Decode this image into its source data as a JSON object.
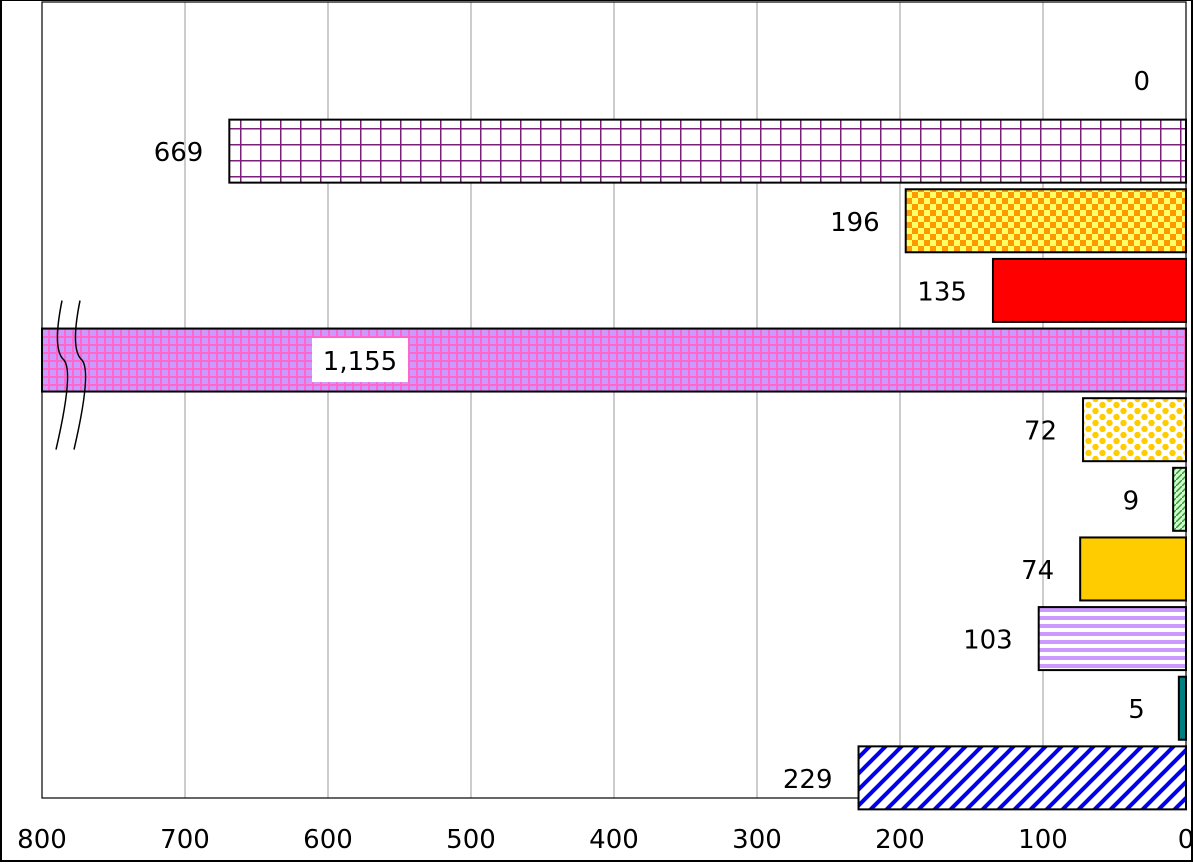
{
  "chart_data": {
    "type": "bar",
    "orientation": "horizontal",
    "x_axis_reversed": true,
    "xlim": [
      800,
      0
    ],
    "xticks": [
      "800",
      "700",
      "600",
      "500",
      "400",
      "300",
      "200",
      "100",
      "0"
    ],
    "grid": true,
    "axis_break": true,
    "values": [
      0,
      669,
      196,
      135,
      1155,
      72,
      9,
      74,
      103,
      5,
      229
    ],
    "value_labels": [
      "0",
      "669",
      "196",
      "135",
      "1,155",
      "72",
      "9",
      "74",
      "103",
      "5",
      "229"
    ],
    "bar_styles": [
      {
        "pattern": "none",
        "fill": "#ffffff",
        "ink": "#ffffff"
      },
      {
        "pattern": "grid",
        "fill": "#ffffff",
        "ink": "#7a1f7a"
      },
      {
        "pattern": "checker",
        "fill": "#ffff66",
        "ink": "#ff9900"
      },
      {
        "pattern": "solid",
        "fill": "#ff0000",
        "ink": "#ff0000"
      },
      {
        "pattern": "fine-grid",
        "fill": "#cc99ff",
        "ink": "#ff66cc"
      },
      {
        "pattern": "dots",
        "fill": "#ffffff",
        "ink": "#ffcc00"
      },
      {
        "pattern": "diagonal-fine",
        "fill": "#ccffcc",
        "ink": "#339933"
      },
      {
        "pattern": "solid",
        "fill": "#ffcc00",
        "ink": "#ffcc00"
      },
      {
        "pattern": "horizontal-stripes",
        "fill": "#ffffff",
        "ink": "#cc99ff"
      },
      {
        "pattern": "solid",
        "fill": "#008080",
        "ink": "#008080"
      },
      {
        "pattern": "diagonal-wide",
        "fill": "#ffffff",
        "ink": "#0000ee"
      }
    ]
  }
}
